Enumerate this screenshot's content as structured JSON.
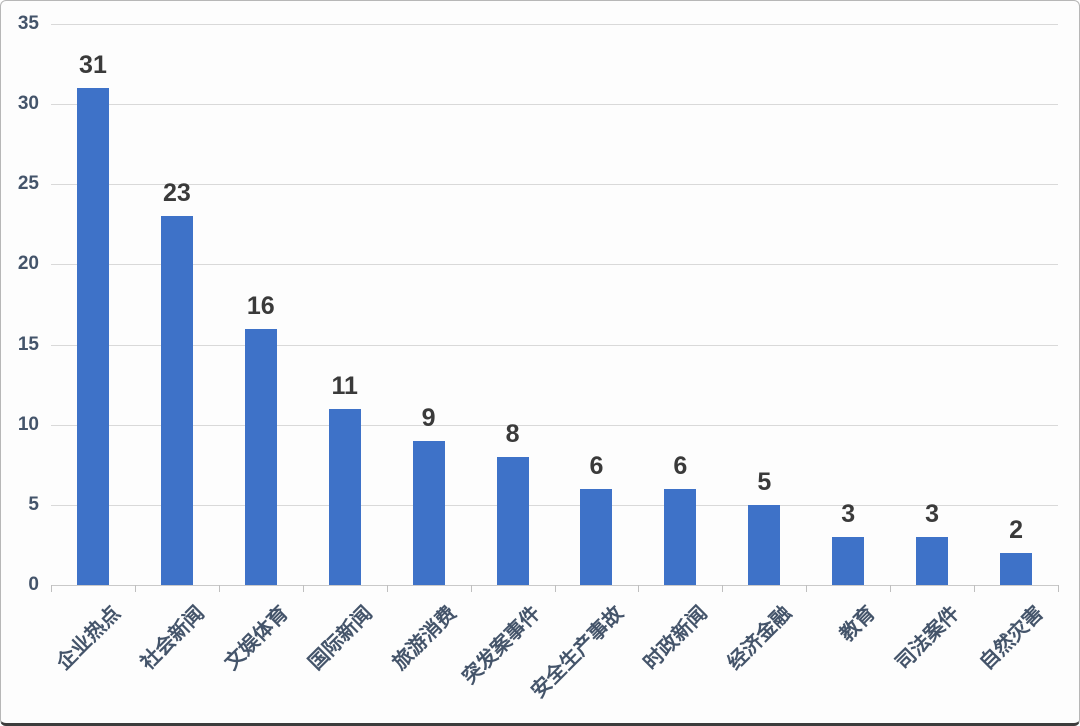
{
  "chart_data": {
    "type": "bar",
    "title": "",
    "xlabel": "",
    "ylabel": "",
    "categories": [
      "企业热点",
      "社会新闻",
      "文娱体育",
      "国际新闻",
      "旅游消费",
      "突发案事件",
      "安全生产事故",
      "时政新闻",
      "经济金融",
      "教育",
      "司法案件",
      "自然灾害"
    ],
    "values": [
      31,
      23,
      16,
      11,
      9,
      8,
      6,
      6,
      5,
      3,
      3,
      2
    ],
    "ylim": [
      0,
      35
    ],
    "yticks": [
      0,
      5,
      10,
      15,
      20,
      25,
      30,
      35
    ],
    "grid": true,
    "legend": "none",
    "value_labels_shown": true,
    "category_label_rotation_deg": 45,
    "colors": {
      "bar": "#3e72c8",
      "value_label": "#3a3a3a",
      "axis_label": "#44546a",
      "gridline": "#d9d9d9",
      "axis_line": "#c9c9c9",
      "tick": "#bfbfbf",
      "background": "#fdfdfd"
    }
  }
}
